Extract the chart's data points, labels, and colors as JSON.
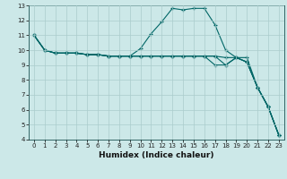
{
  "xlabel": "Humidex (Indice chaleur)",
  "bg_color": "#cce8e8",
  "grid_color": "#aacccc",
  "line_color": "#006666",
  "xlim": [
    -0.5,
    23.5
  ],
  "ylim": [
    4,
    13
  ],
  "xticks": [
    0,
    1,
    2,
    3,
    4,
    5,
    6,
    7,
    8,
    9,
    10,
    11,
    12,
    13,
    14,
    15,
    16,
    17,
    18,
    19,
    20,
    21,
    22,
    23
  ],
  "yticks": [
    4,
    5,
    6,
    7,
    8,
    9,
    10,
    11,
    12,
    13
  ],
  "line1_x": [
    0,
    1,
    2,
    3,
    4,
    5,
    6,
    7,
    8,
    9,
    10,
    11,
    12,
    13,
    14,
    15,
    16,
    17,
    18,
    19,
    20,
    21,
    22,
    23
  ],
  "line1_y": [
    11,
    10,
    9.8,
    9.8,
    9.8,
    9.7,
    9.7,
    9.6,
    9.6,
    9.6,
    10.1,
    11.1,
    11.9,
    12.8,
    12.7,
    12.8,
    12.8,
    11.7,
    10.0,
    9.5,
    9.2,
    7.5,
    6.2,
    4.3
  ],
  "line2_x": [
    0,
    1,
    2,
    3,
    4,
    5,
    6,
    7,
    8,
    9,
    10,
    11,
    12,
    13,
    14,
    15,
    16,
    17,
    18,
    19,
    20,
    21,
    22,
    23
  ],
  "line2_y": [
    11,
    10,
    9.8,
    9.8,
    9.8,
    9.7,
    9.7,
    9.6,
    9.6,
    9.6,
    9.6,
    9.6,
    9.6,
    9.6,
    9.6,
    9.6,
    9.6,
    9.6,
    9.5,
    9.5,
    9.5,
    7.5,
    6.2,
    4.3
  ],
  "line3_x": [
    0,
    1,
    2,
    3,
    4,
    5,
    6,
    7,
    8,
    9,
    10,
    11,
    12,
    13,
    14,
    15,
    16,
    17,
    18,
    19,
    20,
    21,
    22,
    23
  ],
  "line3_y": [
    11,
    10,
    9.8,
    9.8,
    9.8,
    9.7,
    9.7,
    9.6,
    9.6,
    9.6,
    9.6,
    9.6,
    9.6,
    9.6,
    9.6,
    9.6,
    9.6,
    9.0,
    9.0,
    9.5,
    9.2,
    7.5,
    6.2,
    4.3
  ],
  "line4_x": [
    0,
    1,
    2,
    3,
    4,
    5,
    6,
    7,
    8,
    9,
    10,
    11,
    12,
    13,
    14,
    15,
    16,
    17,
    18,
    19,
    20,
    21,
    22,
    23
  ],
  "line4_y": [
    11,
    10,
    9.8,
    9.8,
    9.8,
    9.7,
    9.7,
    9.6,
    9.6,
    9.6,
    9.6,
    9.6,
    9.6,
    9.6,
    9.6,
    9.6,
    9.6,
    9.6,
    9.0,
    9.5,
    9.2,
    7.5,
    6.2,
    4.3
  ],
  "xlabel_fontsize": 6.5,
  "tick_fontsize": 5.0
}
